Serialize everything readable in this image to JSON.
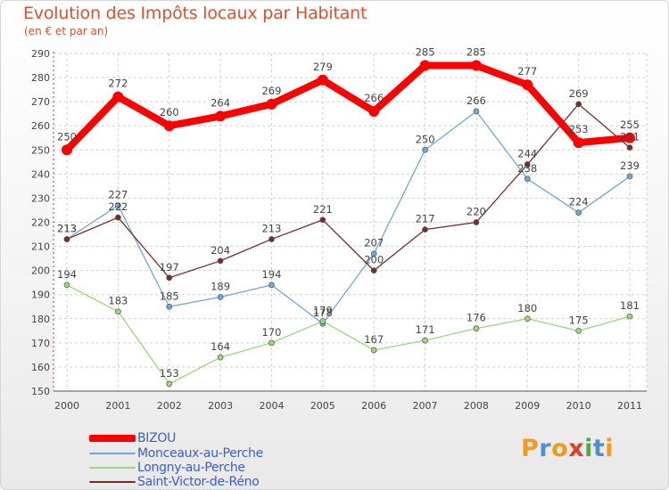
{
  "header": {
    "title": "Evolution des Impôts locaux par Habitant",
    "subtitle": "(en € et par an)"
  },
  "logo": {
    "letters": [
      "P",
      "r",
      "o",
      "x",
      "i",
      "t",
      "i"
    ],
    "colors": [
      "#f39a1c",
      "#4a8fd8",
      "#f39a1c",
      "#e23c2a",
      "#5ba83a",
      "#4a8fd8",
      "#f39a1c"
    ]
  },
  "chart_data": {
    "type": "line",
    "title": "Evolution des Impôts locaux par Habitant",
    "subtitle": "(en € et par an)",
    "xlabel": "",
    "ylabel": "",
    "x": [
      "2000",
      "2001",
      "2002",
      "2003",
      "2004",
      "2005",
      "2006",
      "2007",
      "2008",
      "2009",
      "2010",
      "2011"
    ],
    "ylim": [
      150,
      290
    ],
    "yticks": [
      150,
      160,
      170,
      180,
      190,
      200,
      210,
      220,
      230,
      240,
      250,
      260,
      270,
      280,
      290
    ],
    "grid": true,
    "legend": "bottom-left",
    "series": [
      {
        "name": "BIZOU",
        "color": "#ff0000",
        "values": [
          250,
          272,
          260,
          264,
          269,
          279,
          266,
          285,
          285,
          277,
          253,
          255
        ]
      },
      {
        "name": "Monceaux-au-Perche",
        "color": "#6fa8dc",
        "values": [
          213,
          227,
          185,
          189,
          194,
          178,
          207,
          250,
          266,
          238,
          224,
          239
        ]
      },
      {
        "name": "Longny-au-Perche",
        "color": "#9bd97a",
        "values": [
          194,
          183,
          153,
          164,
          170,
          179,
          167,
          171,
          176,
          180,
          175,
          181
        ]
      },
      {
        "name": "Saint-Victor-de-Réno",
        "color": "#7a2a2a",
        "values": [
          213,
          222,
          197,
          204,
          213,
          221,
          200,
          217,
          220,
          244,
          269,
          251
        ]
      }
    ]
  }
}
